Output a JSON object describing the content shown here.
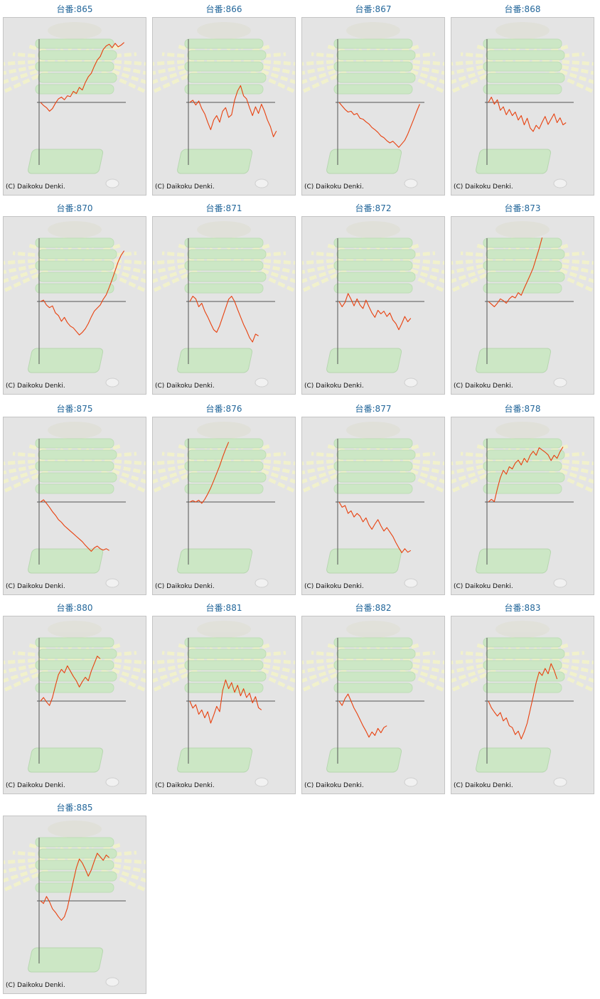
{
  "label_prefix": "台番:",
  "copyright": "(C) Daikoku Denki.",
  "colors": {
    "line": "#e8400e",
    "axis": "#555555",
    "label": "#22669a",
    "background": "#e4e4e4",
    "watermark_green": "#c8e8c0",
    "watermark_rays": "#f4f4c8"
  },
  "machines": [
    {
      "id": "865",
      "label": "台番:865",
      "series": [
        0.0,
        -0.7,
        -1.2,
        -2.0,
        -1.4,
        -0.2,
        0.8,
        1.2,
        0.6,
        1.5,
        1.3,
        2.5,
        2.0,
        3.4,
        2.8,
        4.5,
        5.8,
        6.6,
        8.2,
        9.6,
        10.4,
        12.0,
        12.8,
        13.2,
        12.4,
        13.4,
        12.6,
        13.0,
        13.6
      ]
    },
    {
      "id": "866",
      "label": "台番:866",
      "series": [
        0.0,
        0.5,
        -0.6,
        0.3,
        -1.4,
        -2.6,
        -4.5,
        -6.2,
        -4.0,
        -3.0,
        -4.5,
        -2.0,
        -1.2,
        -3.4,
        -2.8,
        0.5,
        2.6,
        3.8,
        1.5,
        0.8,
        -1.2,
        -3.0,
        -1.0,
        -2.5,
        -0.4,
        -2.0,
        -4.0,
        -5.5,
        -7.8,
        -6.5
      ]
    },
    {
      "id": "867",
      "label": "台番:867",
      "series": [
        0.0,
        -0.8,
        -1.6,
        -2.2,
        -2.0,
        -2.8,
        -2.5,
        -3.6,
        -3.8,
        -4.4,
        -4.9,
        -5.7,
        -6.2,
        -6.8,
        -7.6,
        -8.0,
        -8.7,
        -9.2,
        -8.8,
        -9.5,
        -10.2,
        -9.4,
        -8.6,
        -7.2,
        -5.5,
        -3.8,
        -2.0,
        -0.4
      ]
    },
    {
      "id": "868",
      "label": "台番:868",
      "series": [
        0.0,
        1.2,
        -0.4,
        0.6,
        -1.8,
        -1.0,
        -2.8,
        -1.6,
        -3.0,
        -2.2,
        -4.0,
        -3.0,
        -5.1,
        -3.6,
        -5.8,
        -6.6,
        -5.2,
        -6.0,
        -4.5,
        -3.2,
        -5.0,
        -3.8,
        -2.6,
        -4.6,
        -3.5,
        -5.1,
        -4.6
      ]
    },
    {
      "id": "870",
      "label": "台番:870",
      "series": [
        0.0,
        0.3,
        -0.8,
        -1.4,
        -1.0,
        -2.6,
        -3.2,
        -4.5,
        -3.6,
        -4.8,
        -5.6,
        -6.0,
        -6.8,
        -7.6,
        -7.0,
        -6.2,
        -5.0,
        -3.5,
        -2.2,
        -1.5,
        -0.8,
        0.5,
        1.5,
        3.2,
        5.0,
        7.0,
        9.0,
        10.5,
        11.5
      ]
    },
    {
      "id": "871",
      "label": "台番:871",
      "series": [
        0.0,
        1.2,
        0.6,
        -1.2,
        -0.4,
        -2.2,
        -3.5,
        -5.0,
        -6.4,
        -7.0,
        -5.5,
        -3.5,
        -1.5,
        0.5,
        1.2,
        0.0,
        -1.8,
        -3.5,
        -5.2,
        -6.6,
        -8.2,
        -9.2,
        -7.4,
        -7.8
      ]
    },
    {
      "id": "872",
      "label": "台番:872",
      "series": [
        0.0,
        -1.2,
        -0.2,
        1.8,
        0.5,
        -1.0,
        0.6,
        -0.8,
        -1.6,
        0.3,
        -1.2,
        -2.6,
        -3.6,
        -2.0,
        -2.8,
        -2.2,
        -3.4,
        -2.6,
        -4.2,
        -5.0,
        -6.4,
        -5.0,
        -3.4,
        -4.6,
        -3.8
      ]
    },
    {
      "id": "873",
      "label": "台番:873",
      "series": [
        0.0,
        -0.6,
        -1.2,
        -0.4,
        0.6,
        0.2,
        -0.4,
        0.6,
        1.2,
        0.8,
        2.0,
        1.4,
        3.0,
        4.5,
        6.0,
        7.6,
        9.8,
        12.0,
        14.5
      ]
    },
    {
      "id": "875",
      "label": "台番:875",
      "series": [
        0.0,
        0.5,
        -0.3,
        -1.2,
        -2.2,
        -3.0,
        -4.0,
        -4.6,
        -5.4,
        -6.0,
        -6.6,
        -7.2,
        -7.8,
        -8.4,
        -9.0,
        -9.8,
        -10.5,
        -11.2,
        -10.4,
        -10.0,
        -10.6,
        -10.9,
        -10.6,
        -11.0
      ]
    },
    {
      "id": "876",
      "label": "台番:876",
      "series": [
        0.0,
        0.3,
        0.0,
        0.4,
        -0.3,
        0.6,
        1.8,
        3.2,
        4.8,
        6.5,
        8.2,
        10.2,
        12.0,
        13.6
      ]
    },
    {
      "id": "877",
      "label": "台番:877",
      "series": [
        0.0,
        -1.2,
        -0.8,
        -2.6,
        -2.0,
        -3.4,
        -2.6,
        -3.2,
        -4.5,
        -3.6,
        -5.2,
        -6.2,
        -5.0,
        -4.0,
        -5.4,
        -6.6,
        -5.8,
        -6.8,
        -7.8,
        -9.2,
        -10.4,
        -11.5,
        -10.6,
        -11.4,
        -11.0
      ]
    },
    {
      "id": "878",
      "label": "台番:878",
      "series": [
        0.0,
        0.6,
        0.1,
        3.0,
        5.5,
        7.2,
        6.3,
        8.0,
        7.5,
        8.8,
        9.5,
        8.4,
        9.9,
        9.0,
        10.6,
        11.5,
        10.6,
        12.3,
        11.8,
        11.3,
        10.7,
        9.4,
        10.6,
        9.9,
        11.4,
        12.5
      ]
    },
    {
      "id": "880",
      "label": "台番:880",
      "series": [
        0.0,
        0.8,
        -0.2,
        -1.0,
        0.8,
        3.5,
        6.0,
        7.2,
        6.4,
        8.0,
        6.8,
        5.6,
        4.6,
        3.2,
        4.4,
        5.4,
        4.6,
        6.8,
        8.5,
        10.2,
        9.6
      ]
    },
    {
      "id": "881",
      "label": "台番:881",
      "series": [
        0.0,
        -1.6,
        -0.8,
        -3.0,
        -2.0,
        -3.8,
        -2.4,
        -5.0,
        -3.2,
        -1.2,
        -2.4,
        2.4,
        4.8,
        2.8,
        4.2,
        2.0,
        3.6,
        1.2,
        2.8,
        0.8,
        1.8,
        -0.4,
        1.0,
        -1.5,
        -2.0
      ]
    },
    {
      "id": "882",
      "label": "台番:882",
      "series": [
        0.0,
        -1.0,
        0.6,
        1.6,
        0.0,
        -1.6,
        -2.8,
        -4.2,
        -5.6,
        -6.8,
        -8.2,
        -7.0,
        -7.8,
        -6.2,
        -7.2,
        -6.0,
        -5.6
      ]
    },
    {
      "id": "883",
      "label": "台番:883",
      "series": [
        0.0,
        -1.5,
        -2.5,
        -3.4,
        -2.6,
        -4.5,
        -3.8,
        -5.6,
        -6.0,
        -7.6,
        -6.8,
        -8.6,
        -7.0,
        -5.0,
        -2.0,
        1.0,
        4.2,
        6.6,
        5.8,
        7.4,
        6.2,
        8.5,
        7.0,
        5.0
      ]
    },
    {
      "id": "885",
      "label": "台番:885",
      "series": [
        0.0,
        -0.6,
        1.0,
        -0.2,
        -1.8,
        -2.6,
        -3.6,
        -4.4,
        -3.6,
        -1.6,
        1.5,
        4.5,
        7.5,
        9.5,
        8.6,
        7.2,
        5.6,
        7.0,
        9.0,
        10.8,
        10.0,
        9.2,
        10.4,
        9.8
      ]
    }
  ]
}
